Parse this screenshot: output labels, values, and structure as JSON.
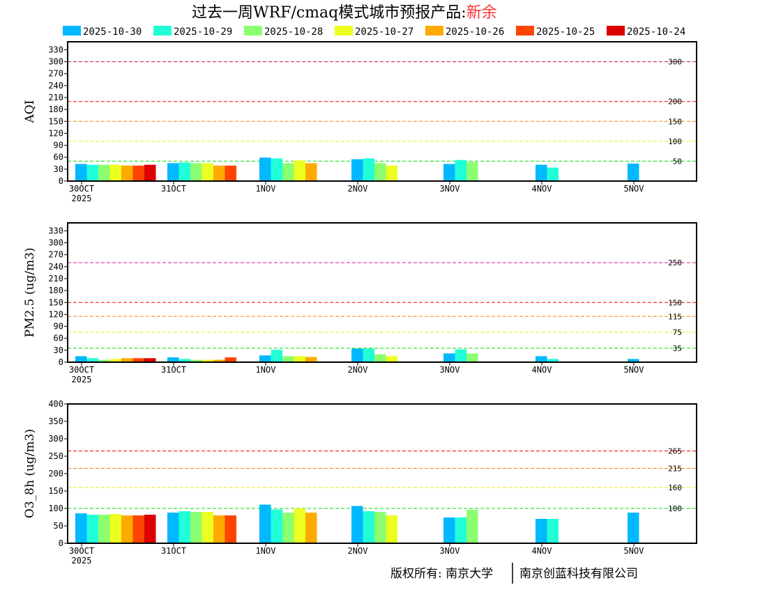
{
  "title": {
    "main": "过去一周WRF/cmaq模式城市预报产品:",
    "city": "新余",
    "city_color": "#ff3030"
  },
  "footer": {
    "left": "版权所有: 南京大学",
    "right": "南京创蓝科技有限公司"
  },
  "legend": [
    {
      "label": "2025-10-30",
      "color": "#00b8ff"
    },
    {
      "label": "2025-10-29",
      "color": "#20ffd8"
    },
    {
      "label": "2025-10-28",
      "color": "#8cff70"
    },
    {
      "label": "2025-10-27",
      "color": "#ecff20"
    },
    {
      "label": "2025-10-26",
      "color": "#ffaa00"
    },
    {
      "label": "2025-10-25",
      "color": "#ff4400"
    },
    {
      "label": "2025-10-24",
      "color": "#dd0000"
    }
  ],
  "chart_data": [
    {
      "type": "bar",
      "ylabel": "AQI",
      "ylim": [
        0,
        350
      ],
      "yticks": [
        0,
        30,
        60,
        90,
        120,
        150,
        180,
        210,
        240,
        270,
        300,
        330
      ],
      "categories": [
        "30OCT",
        "31OCT",
        "1NOV",
        "2NOV",
        "3NOV",
        "4NOV",
        "5NOV"
      ],
      "year_label": "2025",
      "thresholds": [
        {
          "value": 50,
          "label": "50",
          "color": "#00dd00"
        },
        {
          "value": 100,
          "label": "100",
          "color": "#eeee00"
        },
        {
          "value": 150,
          "label": "150",
          "color": "#ff8000"
        },
        {
          "value": 200,
          "label": "200",
          "color": "#ff0000"
        },
        {
          "value": 300,
          "label": "300",
          "color": "#c01050"
        }
      ],
      "series": [
        {
          "name": "2025-10-30",
          "values": [
            43,
            45,
            59,
            55,
            43,
            41,
            44
          ]
        },
        {
          "name": "2025-10-29",
          "values": [
            41,
            47,
            57,
            57,
            53,
            34,
            null
          ]
        },
        {
          "name": "2025-10-28",
          "values": [
            41,
            45,
            45,
            45,
            48,
            null,
            null
          ]
        },
        {
          "name": "2025-10-27",
          "values": [
            41,
            45,
            52,
            39,
            null,
            null,
            null
          ]
        },
        {
          "name": "2025-10-26",
          "values": [
            39,
            39,
            45,
            null,
            null,
            null,
            null
          ]
        },
        {
          "name": "2025-10-25",
          "values": [
            39,
            39,
            null,
            null,
            null,
            null,
            null
          ]
        },
        {
          "name": "2025-10-24",
          "values": [
            41,
            null,
            null,
            null,
            null,
            null,
            null
          ]
        }
      ]
    },
    {
      "type": "bar",
      "ylabel": "PM2.5 (ug/m3)",
      "ylim": [
        0,
        350
      ],
      "yticks": [
        0,
        30,
        60,
        90,
        120,
        150,
        180,
        210,
        240,
        270,
        300,
        330
      ],
      "categories": [
        "30OCT",
        "31OCT",
        "1NOV",
        "2NOV",
        "3NOV",
        "4NOV",
        "5NOV"
      ],
      "year_label": "2025",
      "thresholds": [
        {
          "value": 35,
          "label": "35",
          "color": "#00dd00"
        },
        {
          "value": 75,
          "label": "75",
          "color": "#eeee00"
        },
        {
          "value": 115,
          "label": "115",
          "color": "#ff8000"
        },
        {
          "value": 150,
          "label": "150",
          "color": "#ff0000"
        },
        {
          "value": 250,
          "label": "250",
          "color": "#e0108a"
        }
      ],
      "series": [
        {
          "name": "2025-10-30",
          "values": [
            15,
            12,
            17,
            34,
            22,
            15,
            8
          ]
        },
        {
          "name": "2025-10-29",
          "values": [
            10,
            8,
            31,
            34,
            32,
            8,
            null
          ]
        },
        {
          "name": "2025-10-28",
          "values": [
            6,
            6,
            15,
            20,
            22,
            null,
            null
          ]
        },
        {
          "name": "2025-10-27",
          "values": [
            8,
            6,
            15,
            15,
            null,
            null,
            null
          ]
        },
        {
          "name": "2025-10-26",
          "values": [
            10,
            6,
            13,
            null,
            null,
            null,
            null
          ]
        },
        {
          "name": "2025-10-25",
          "values": [
            10,
            12,
            null,
            null,
            null,
            null,
            null
          ]
        },
        {
          "name": "2025-10-24",
          "values": [
            10,
            null,
            null,
            null,
            null,
            null,
            null
          ]
        }
      ]
    },
    {
      "type": "bar",
      "ylabel": "O3_8h (ug/m3)",
      "ylim": [
        0,
        400
      ],
      "yticks": [
        0,
        50,
        100,
        150,
        200,
        250,
        300,
        350,
        400
      ],
      "categories": [
        "30OCT",
        "31OCT",
        "1NOV",
        "2NOV",
        "3NOV",
        "4NOV",
        "5NOV"
      ],
      "year_label": "2025",
      "thresholds": [
        {
          "value": 100,
          "label": "100",
          "color": "#00dd00"
        },
        {
          "value": 160,
          "label": "160",
          "color": "#eeee00"
        },
        {
          "value": 215,
          "label": "215",
          "color": "#ff8000"
        },
        {
          "value": 265,
          "label": "265",
          "color": "#ff0000"
        }
      ],
      "series": [
        {
          "name": "2025-10-30",
          "values": [
            86,
            88,
            111,
            107,
            74,
            70,
            88
          ]
        },
        {
          "name": "2025-10-29",
          "values": [
            82,
            92,
            97,
            92,
            74,
            70,
            null
          ]
        },
        {
          "name": "2025-10-28",
          "values": [
            82,
            90,
            88,
            90,
            96,
            null,
            null
          ]
        },
        {
          "name": "2025-10-27",
          "values": [
            84,
            90,
            100,
            80,
            null,
            null,
            null
          ]
        },
        {
          "name": "2025-10-26",
          "values": [
            80,
            80,
            88,
            null,
            null,
            null,
            null
          ]
        },
        {
          "name": "2025-10-25",
          "values": [
            80,
            80,
            null,
            null,
            null,
            null,
            null
          ]
        },
        {
          "name": "2025-10-24",
          "values": [
            82,
            null,
            null,
            null,
            null,
            null,
            null
          ]
        }
      ]
    }
  ]
}
